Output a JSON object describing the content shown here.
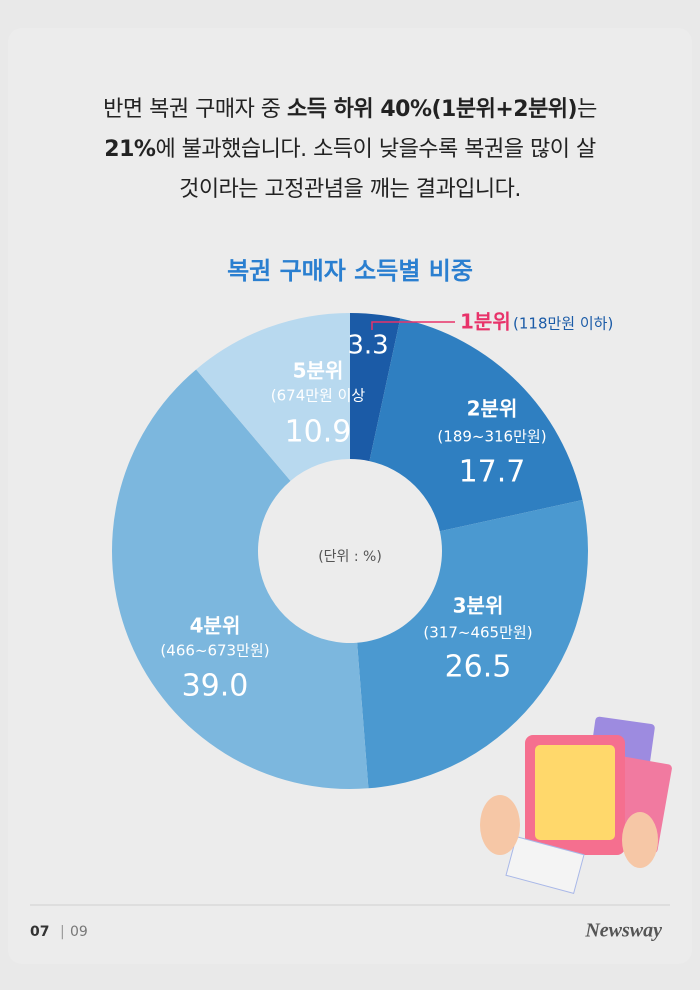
{
  "intro": {
    "lines": [
      [
        {
          "text": "반면 복권 구매자 중 ",
          "bold": false
        },
        {
          "text": "소득 하위 40%(1분위+2분위)",
          "bold": true
        },
        {
          "text": "는",
          "bold": false
        }
      ],
      [
        {
          "text": "21%",
          "bold": true
        },
        {
          "text": "에 불과했습니다. 소득이 낮을수록 복권을 많이 살",
          "bold": false
        }
      ],
      [
        {
          "text": "것이라는 고정관념을 깨는 결과입니다.",
          "bold": false
        }
      ]
    ]
  },
  "chart_data": {
    "type": "pie",
    "title": "복권 구매자 소득별 비중",
    "unit": "(단위 : %)",
    "categories": [
      "1분위",
      "2분위",
      "3분위",
      "4분위",
      "5분위"
    ],
    "sublabels": [
      "(118만원 이하)",
      "(189~316만원)",
      "(317~465만원)",
      "(466~673만원)",
      "(674만원 이상"
    ],
    "values": [
      3.3,
      17.7,
      26.5,
      39.0,
      10.9
    ],
    "value_labels": [
      "3.3",
      "17.7",
      "26.5",
      "39.0",
      "10.9"
    ],
    "colors": [
      "#1b5ba7",
      "#2f7fc1",
      "#4b99d0",
      "#7cb7de",
      "#b8d9ef"
    ],
    "donut": true
  },
  "footer": {
    "page": "07",
    "separator": "|",
    "total": "09",
    "brand": "Newsway"
  }
}
